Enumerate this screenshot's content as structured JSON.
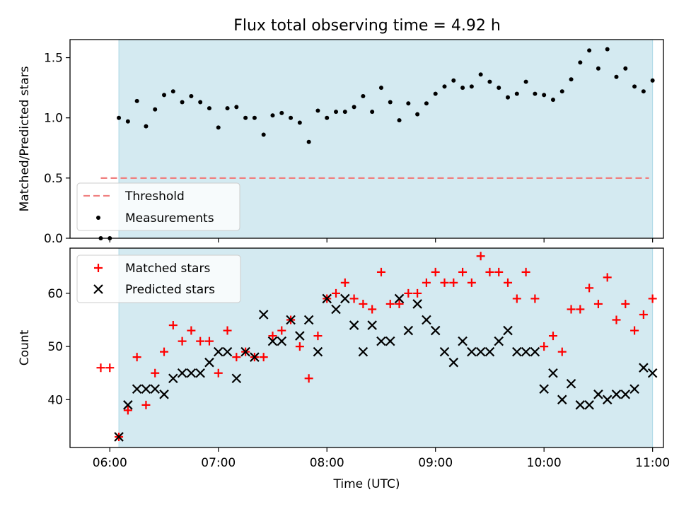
{
  "title": "Flux total observing time = 4.92 h",
  "colors": {
    "observing_band": "#d4eaf1",
    "band_edge": "#add8e6",
    "threshold": "#f08080",
    "measurement": "#000000",
    "matched": "#ff0000",
    "predicted": "#000000"
  },
  "chart_data": [
    {
      "type": "scatter",
      "panel": "top",
      "ylabel": "Matched/Predicted stars",
      "xlabel": "",
      "ylim": [
        0,
        1.65
      ],
      "yticks": [
        "0.0",
        "0.5",
        "1.0",
        "1.5"
      ],
      "ytick_values": [
        0,
        0.5,
        1.0,
        1.5
      ],
      "observing_window": [
        "06:05",
        "11:00"
      ],
      "grid": false,
      "legend_position": "lower-left",
      "threshold": {
        "name": "Threshold",
        "value": 0.5,
        "x_range": [
          "05:55",
          "10:58"
        ]
      },
      "series": [
        {
          "name": "Measurements",
          "x": [
            "05:55",
            "06:00",
            "06:05",
            "06:10",
            "06:15",
            "06:20",
            "06:25",
            "06:30",
            "06:35",
            "06:40",
            "06:45",
            "06:50",
            "06:55",
            "07:00",
            "07:05",
            "07:10",
            "07:15",
            "07:20",
            "07:25",
            "07:30",
            "07:35",
            "07:40",
            "07:45",
            "07:50",
            "07:55",
            "08:00",
            "08:05",
            "08:10",
            "08:15",
            "08:20",
            "08:25",
            "08:30",
            "08:35",
            "08:40",
            "08:45",
            "08:50",
            "08:55",
            "09:00",
            "09:05",
            "09:10",
            "09:15",
            "09:20",
            "09:25",
            "09:30",
            "09:35",
            "09:40",
            "09:45",
            "09:50",
            "09:55",
            "10:00",
            "10:05",
            "10:10",
            "10:15",
            "10:20",
            "10:25",
            "10:30",
            "10:35",
            "10:40",
            "10:45",
            "10:50",
            "10:55",
            "11:00"
          ],
          "y": [
            0.0,
            0.0,
            1.0,
            0.97,
            1.14,
            0.93,
            1.07,
            1.19,
            1.22,
            1.13,
            1.18,
            1.13,
            1.08,
            0.92,
            1.08,
            1.09,
            1.0,
            1.0,
            0.86,
            1.02,
            1.04,
            1.0,
            0.96,
            0.8,
            1.06,
            1.0,
            1.05,
            1.05,
            1.09,
            1.18,
            1.05,
            1.25,
            1.13,
            0.98,
            1.12,
            1.03,
            1.12,
            1.2,
            1.26,
            1.31,
            1.25,
            1.26,
            1.36,
            1.3,
            1.25,
            1.17,
            1.2,
            1.3,
            1.2,
            1.19,
            1.15,
            1.22,
            1.32,
            1.46,
            1.56,
            1.41,
            1.57,
            1.34,
            1.41,
            1.26,
            1.22,
            1.31
          ]
        }
      ]
    },
    {
      "type": "scatter",
      "panel": "bottom",
      "ylabel": "Count",
      "xlabel": "Time (UTC)",
      "ylim": [
        31,
        68.5
      ],
      "yticks": [
        "40",
        "50",
        "60"
      ],
      "ytick_values": [
        40,
        50,
        60
      ],
      "xlim": [
        "05:38",
        "11:06"
      ],
      "xticks": [
        "06:00",
        "07:00",
        "08:00",
        "09:00",
        "10:00",
        "11:00"
      ],
      "observing_window": [
        "06:05",
        "11:00"
      ],
      "grid": false,
      "legend_position": "upper-left",
      "series": [
        {
          "name": "Matched stars",
          "marker": "plus",
          "x": [
            "05:55",
            "06:00",
            "06:05",
            "06:10",
            "06:15",
            "06:20",
            "06:25",
            "06:30",
            "06:35",
            "06:40",
            "06:45",
            "06:50",
            "06:55",
            "07:00",
            "07:05",
            "07:10",
            "07:15",
            "07:20",
            "07:25",
            "07:30",
            "07:35",
            "07:40",
            "07:45",
            "07:50",
            "07:55",
            "08:00",
            "08:05",
            "08:10",
            "08:15",
            "08:20",
            "08:25",
            "08:30",
            "08:35",
            "08:40",
            "08:45",
            "08:50",
            "08:55",
            "09:00",
            "09:05",
            "09:10",
            "09:15",
            "09:20",
            "09:25",
            "09:30",
            "09:35",
            "09:40",
            "09:45",
            "09:50",
            "09:55",
            "10:00",
            "10:05",
            "10:10",
            "10:15",
            "10:20",
            "10:25",
            "10:30",
            "10:35",
            "10:40",
            "10:45",
            "10:50",
            "10:55",
            "11:00"
          ],
          "y": [
            46,
            46,
            33,
            38,
            48,
            39,
            45,
            49,
            54,
            51,
            53,
            51,
            51,
            45,
            53,
            48,
            49,
            48,
            48,
            52,
            53,
            55,
            50,
            44,
            52,
            59,
            60,
            62,
            59,
            58,
            57,
            64,
            58,
            58,
            60,
            60,
            62,
            64,
            62,
            62,
            64,
            62,
            67,
            64,
            64,
            62,
            59,
            64,
            59,
            50,
            52,
            49,
            57,
            57,
            61,
            58,
            63,
            55,
            58,
            53,
            56,
            59
          ]
        },
        {
          "name": "Predicted stars",
          "marker": "x",
          "x": [
            "06:05",
            "06:10",
            "06:15",
            "06:20",
            "06:25",
            "06:30",
            "06:35",
            "06:40",
            "06:45",
            "06:50",
            "06:55",
            "07:00",
            "07:05",
            "07:10",
            "07:15",
            "07:20",
            "07:25",
            "07:30",
            "07:35",
            "07:40",
            "07:45",
            "07:50",
            "07:55",
            "08:00",
            "08:05",
            "08:10",
            "08:15",
            "08:20",
            "08:25",
            "08:30",
            "08:35",
            "08:40",
            "08:45",
            "08:50",
            "08:55",
            "09:00",
            "09:05",
            "09:10",
            "09:15",
            "09:20",
            "09:25",
            "09:30",
            "09:35",
            "09:40",
            "09:45",
            "09:50",
            "09:55",
            "10:00",
            "10:05",
            "10:10",
            "10:15",
            "10:20",
            "10:25",
            "10:30",
            "10:35",
            "10:40",
            "10:45",
            "10:50",
            "10:55",
            "11:00"
          ],
          "y": [
            33,
            39,
            42,
            42,
            42,
            41,
            44,
            45,
            45,
            45,
            47,
            49,
            49,
            44,
            49,
            48,
            56,
            51,
            51,
            55,
            52,
            55,
            49,
            59,
            57,
            59,
            54,
            49,
            54,
            51,
            51,
            59,
            53,
            58,
            55,
            53,
            49,
            47,
            51,
            49,
            49,
            49,
            51,
            53,
            49,
            49,
            49,
            42,
            45,
            40,
            43,
            39,
            39,
            41,
            40,
            41,
            41,
            42,
            46,
            45
          ]
        }
      ]
    }
  ]
}
